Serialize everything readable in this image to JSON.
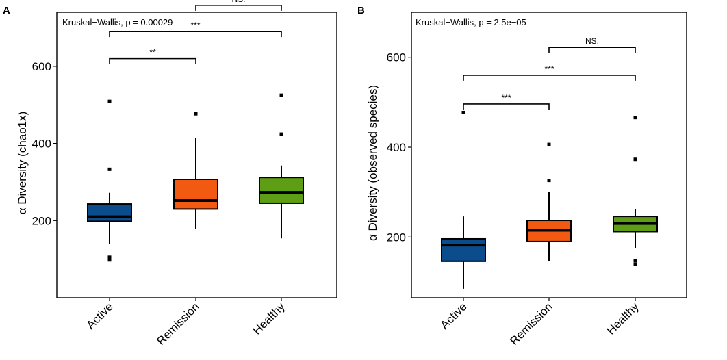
{
  "chart_data": [
    {
      "panel_label": "A",
      "type": "box",
      "title": "Kruskal−Wallis, p = 0.00029",
      "xlabel": "",
      "ylabel": "α Diversity (chao1x)",
      "ylim": [
        0,
        740
      ],
      "yticks": [
        200,
        400,
        600
      ],
      "categories": [
        "Active",
        "Remission",
        "Healthy"
      ],
      "colors": [
        "#0b4c8c",
        "#f25a12",
        "#5d9e14"
      ],
      "boxes": [
        {
          "name": "Active",
          "q1": 198,
          "median": 210,
          "q3": 243,
          "whisker_low": 140,
          "whisker_high": 272,
          "outliers": [
            333,
            509,
            98,
            105
          ]
        },
        {
          "name": "Remission",
          "q1": 230,
          "median": 252,
          "q3": 307,
          "whisker_low": 178,
          "whisker_high": 414,
          "outliers": [
            477
          ]
        },
        {
          "name": "Healthy",
          "q1": 245,
          "median": 273,
          "q3": 312,
          "whisker_low": 154,
          "whisker_high": 343,
          "outliers": [
            424,
            525
          ]
        }
      ],
      "comparisons": [
        {
          "from": "Active",
          "to": "Remission",
          "label": "**",
          "y": 620
        },
        {
          "from": "Active",
          "to": "Healthy",
          "label": "***",
          "y": 690
        },
        {
          "from": "Remission",
          "to": "Healthy",
          "label": "NS.",
          "y": 758
        }
      ],
      "grid": false
    },
    {
      "panel_label": "B",
      "type": "box",
      "title": "Kruskal−Wallis, p = 2.5e−05",
      "xlabel": "",
      "ylabel": "α Diversity (observed species)",
      "ylim": [
        65,
        700
      ],
      "yticks": [
        200,
        400,
        600
      ],
      "categories": [
        "Active",
        "Remission",
        "Healthy"
      ],
      "colors": [
        "#0b4c8c",
        "#f25a12",
        "#5d9e14"
      ],
      "boxes": [
        {
          "name": "Active",
          "q1": 146,
          "median": 182,
          "q3": 196,
          "whisker_low": 85,
          "whisker_high": 246,
          "outliers": [
            477
          ]
        },
        {
          "name": "Remission",
          "q1": 190,
          "median": 215,
          "q3": 237,
          "whisker_low": 147,
          "whisker_high": 301,
          "outliers": [
            326,
            406
          ]
        },
        {
          "name": "Healthy",
          "q1": 212,
          "median": 230,
          "q3": 246,
          "whisker_low": 175,
          "whisker_high": 263,
          "outliers": [
            140,
            148,
            373,
            466
          ]
        }
      ],
      "comparisons": [
        {
          "from": "Active",
          "to": "Remission",
          "label": "***",
          "y": 496
        },
        {
          "from": "Active",
          "to": "Healthy",
          "label": "***",
          "y": 560
        },
        {
          "from": "Remission",
          "to": "Healthy",
          "label": "NS.",
          "y": 622
        }
      ],
      "grid": false
    }
  ]
}
